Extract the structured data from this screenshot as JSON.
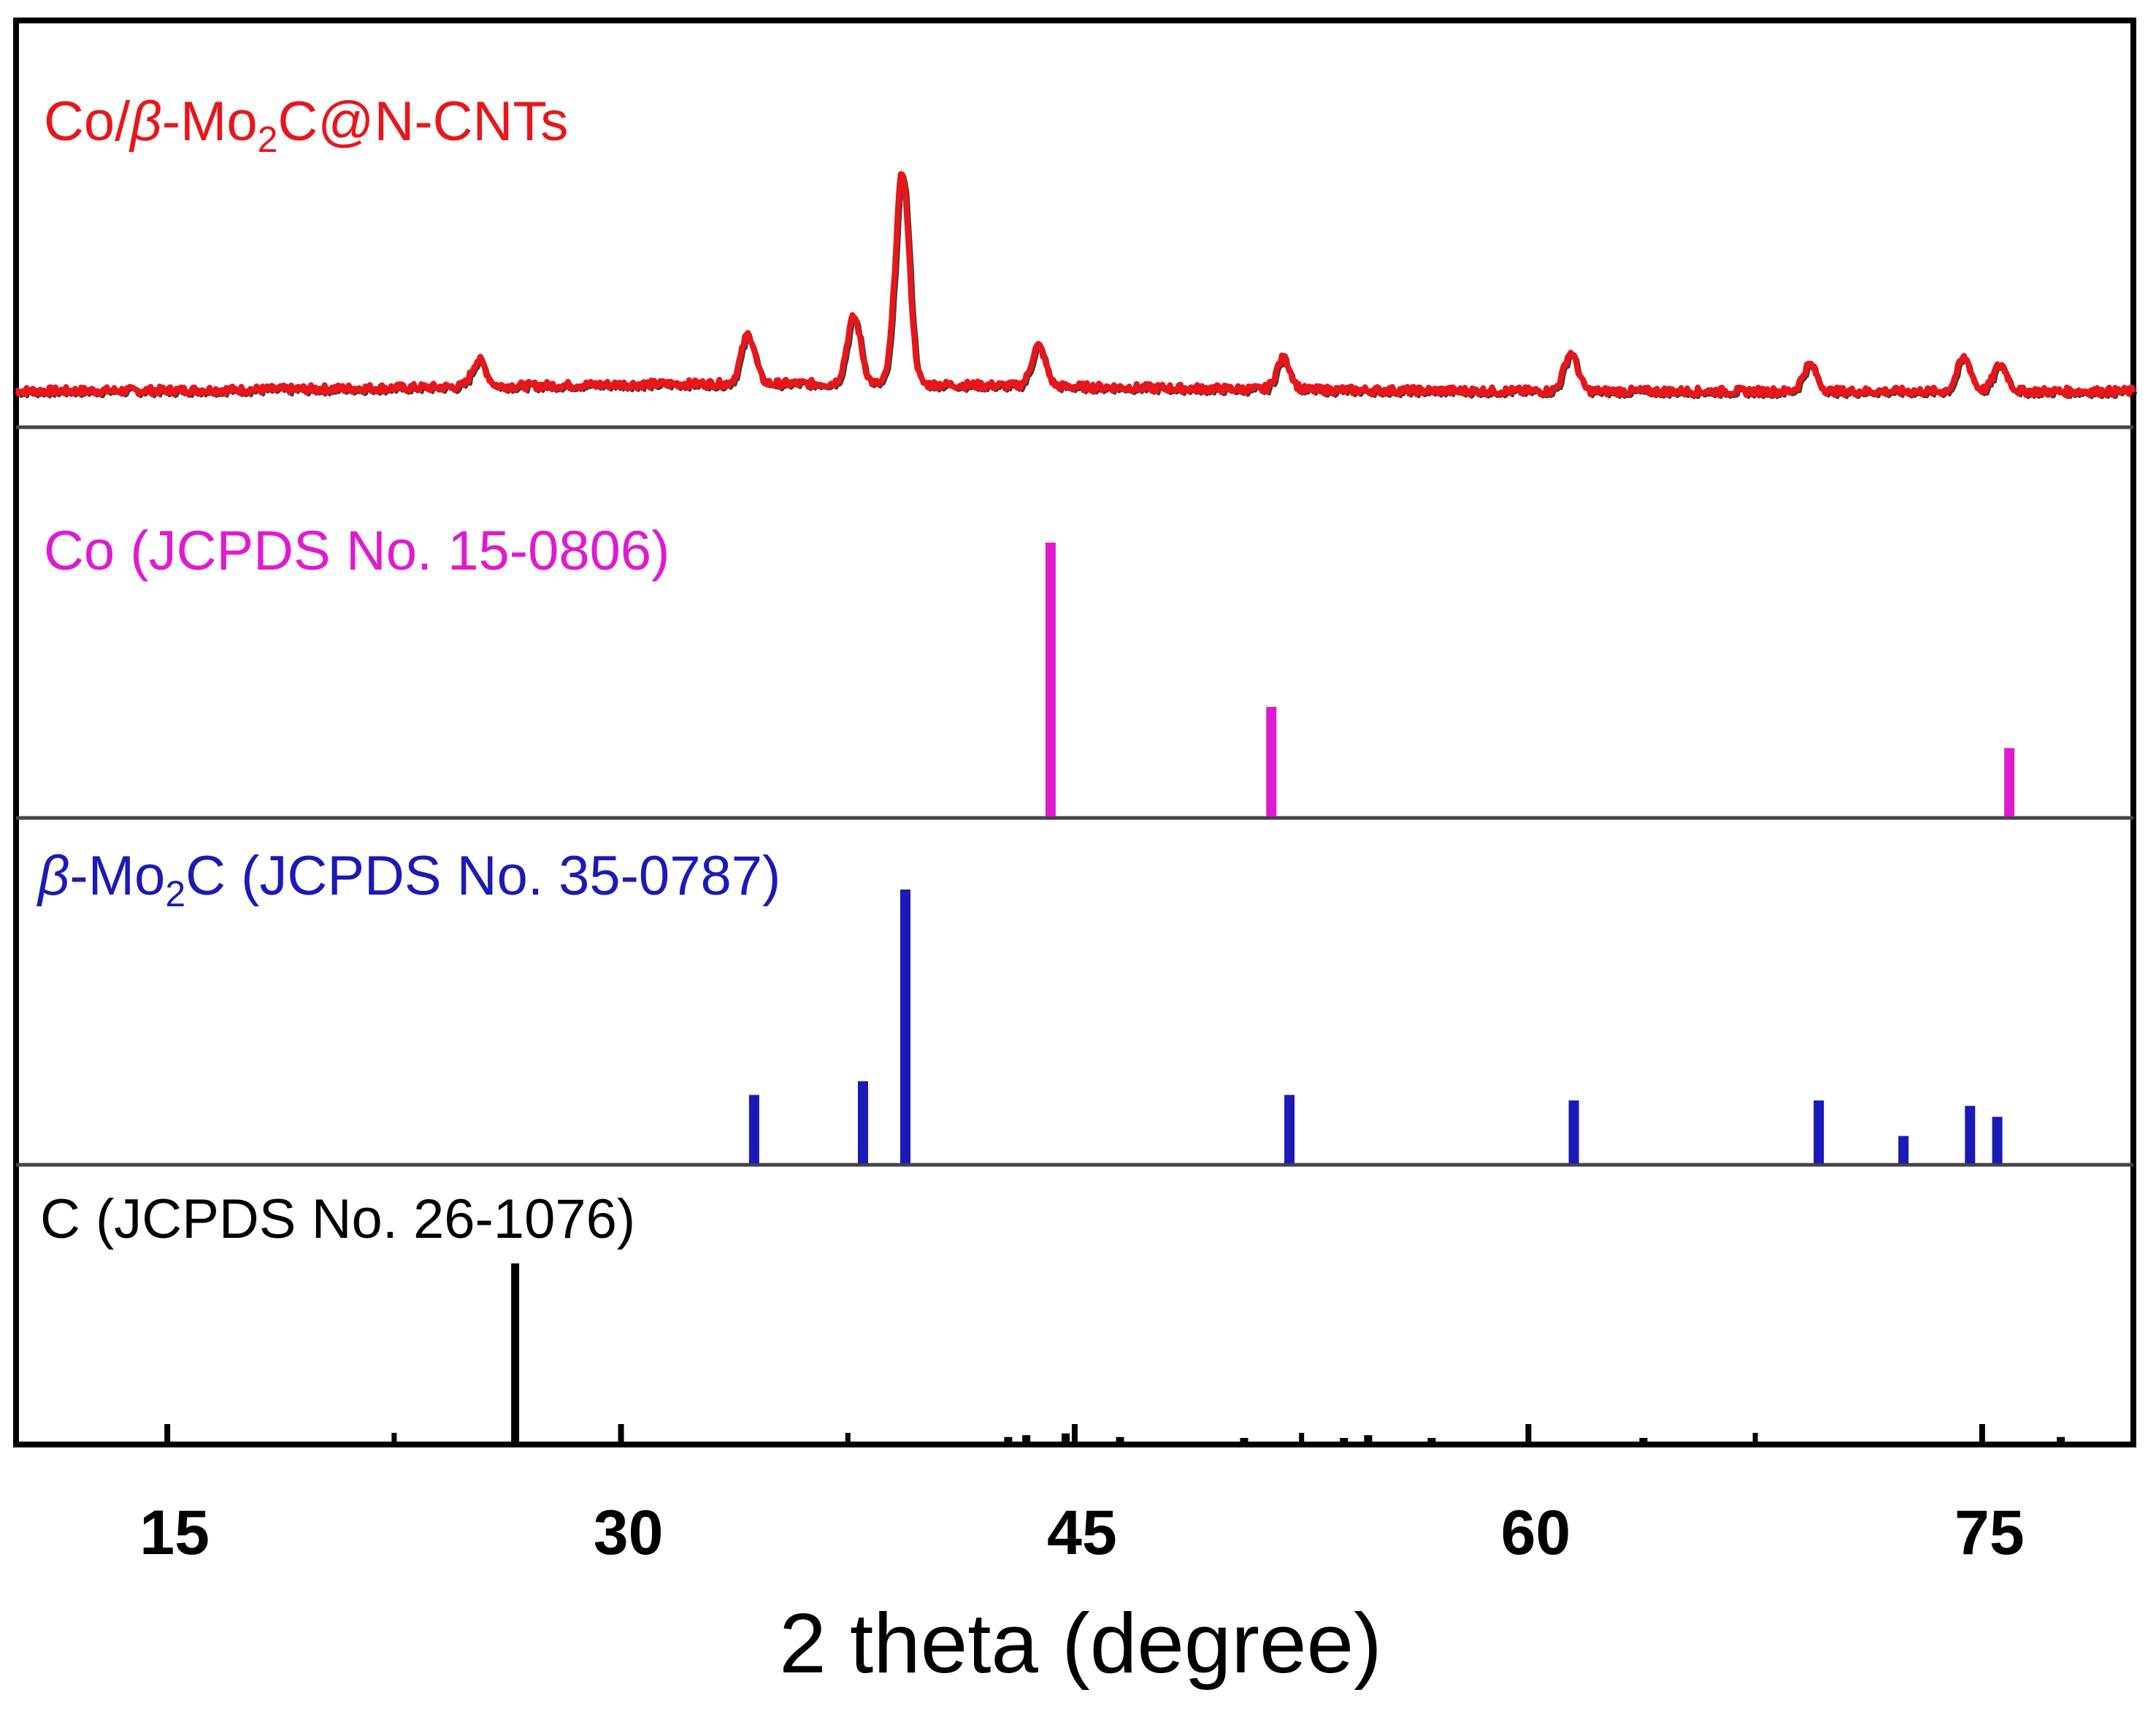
{
  "chart_data": {
    "type": "line",
    "title": "",
    "xlabel": "2 theta (degree)",
    "ylabel": "",
    "xlim": [
      10,
      80
    ],
    "x_ticks": [
      15,
      30,
      45,
      60,
      75
    ],
    "x_tick_labels": [
      "15",
      "30",
      "45",
      "60",
      "75"
    ],
    "grid": false,
    "panels": [
      {
        "kind": "pattern",
        "name": "Co/β-Mo2C@N-CNTs",
        "label_parts": [
          "Co/",
          "β",
          "-Mo",
          "2",
          "C@N-CNTs"
        ],
        "color": "#e8161a",
        "baseline": 0.03,
        "peaks": [
          {
            "x": 25.3,
            "y": 0.12
          },
          {
            "x": 34.2,
            "y": 0.22
          },
          {
            "x": 37.7,
            "y": 0.3
          },
          {
            "x": 39.3,
            "y": 0.95
          },
          {
            "x": 43.8,
            "y": 0.18
          },
          {
            "x": 51.9,
            "y": 0.14
          },
          {
            "x": 61.4,
            "y": 0.17
          },
          {
            "x": 69.3,
            "y": 0.12
          },
          {
            "x": 74.4,
            "y": 0.15
          },
          {
            "x": 75.6,
            "y": 0.12
          }
        ]
      },
      {
        "kind": "reference",
        "name": "Co (JCPDS No. 15-0806)",
        "label_parts": [
          "Co (JCPDS No. 15-0806)"
        ],
        "color": "#e01ad0",
        "sticks": [
          {
            "x": 44.2,
            "y": 100
          },
          {
            "x": 51.5,
            "y": 40
          },
          {
            "x": 75.9,
            "y": 25
          }
        ]
      },
      {
        "kind": "reference",
        "name": "β-Mo2C (JCPDS No. 35-0787)",
        "label_parts": [
          "β",
          "-Mo",
          "2",
          "C (JCPDS No. 35-0787)"
        ],
        "color": "#1a1ab8",
        "sticks": [
          {
            "x": 34.4,
            "y": 25
          },
          {
            "x": 38.0,
            "y": 30
          },
          {
            "x": 39.4,
            "y": 100
          },
          {
            "x": 52.1,
            "y": 25
          },
          {
            "x": 61.5,
            "y": 23
          },
          {
            "x": 69.6,
            "y": 23
          },
          {
            "x": 72.4,
            "y": 10
          },
          {
            "x": 74.6,
            "y": 21
          },
          {
            "x": 75.5,
            "y": 17
          }
        ]
      },
      {
        "kind": "reference",
        "name": "C (JCPDS No. 26-1076)",
        "label_parts": [
          "C (JCPDS No. 26-1076)"
        ],
        "color": "#000000",
        "sticks": [
          {
            "x": 26.5,
            "y": 100
          },
          {
            "x": 42.8,
            "y": 3
          },
          {
            "x": 43.4,
            "y": 4
          },
          {
            "x": 44.7,
            "y": 5
          },
          {
            "x": 46.5,
            "y": 3
          },
          {
            "x": 50.6,
            "y": 2
          },
          {
            "x": 53.9,
            "y": 2
          },
          {
            "x": 54.7,
            "y": 4
          },
          {
            "x": 56.8,
            "y": 2
          },
          {
            "x": 63.8,
            "y": 2
          },
          {
            "x": 77.6,
            "y": 3
          }
        ]
      }
    ]
  }
}
